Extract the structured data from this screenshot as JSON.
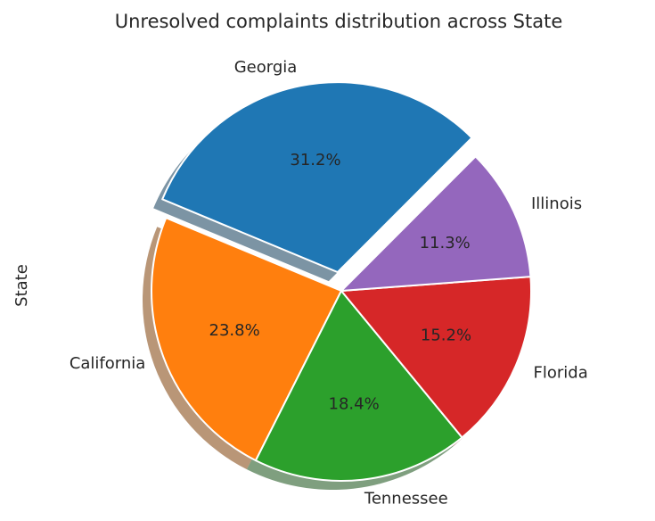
{
  "chart_data": {
    "type": "pie",
    "title": "Unresolved complaints distribution across State",
    "ylabel": "State",
    "categories": [
      "Georgia",
      "California",
      "Tennessee",
      "Florida",
      "Illinois"
    ],
    "values": [
      31.2,
      23.8,
      18.4,
      15.2,
      11.3
    ],
    "value_labels": [
      "31.2%",
      "23.8%",
      "18.4%",
      "15.2%",
      "11.3%"
    ],
    "colors": [
      "#1f77b4",
      "#ff7f0e",
      "#2ca02c",
      "#d62728",
      "#9467bd"
    ],
    "explode": [
      0.1,
      0,
      0,
      0,
      0
    ],
    "start_angle_deg": 45,
    "direction": "counterclockwise",
    "shadow": true,
    "legend": "none"
  }
}
